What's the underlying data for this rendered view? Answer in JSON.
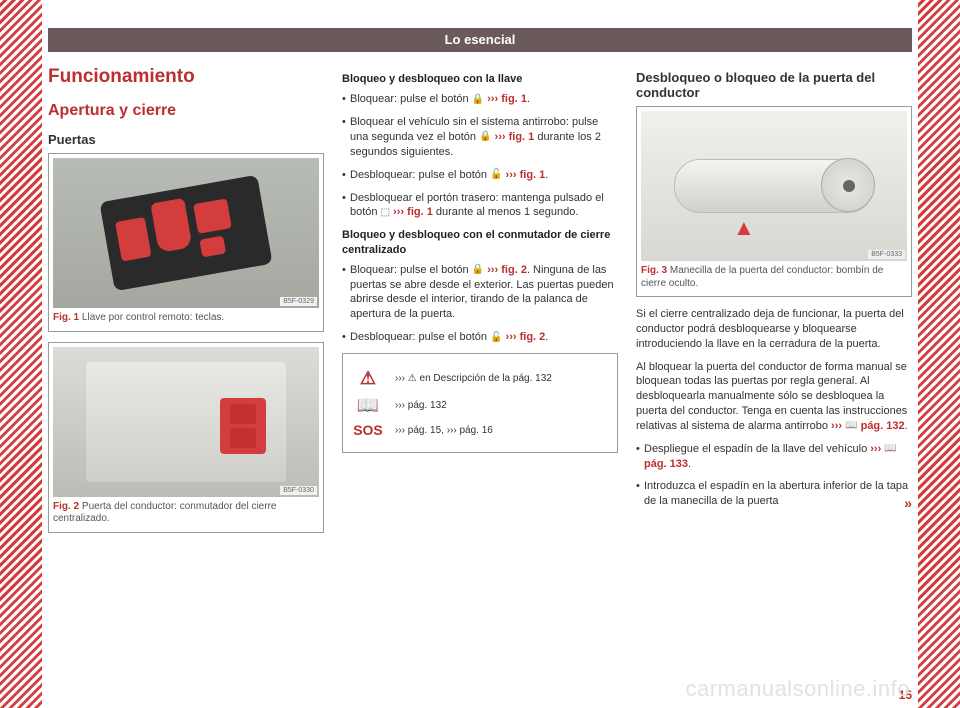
{
  "header": {
    "title": "Lo esencial"
  },
  "page_number": "15",
  "watermark": "carmanualsonline.info",
  "col1": {
    "h1": "Funcionamiento",
    "h2": "Apertura y cierre",
    "h3": "Puertas",
    "fig1": {
      "tag": "B5F-0329",
      "num": "Fig. 1",
      "cap": "Llave por control remoto: teclas."
    },
    "fig2": {
      "tag": "B5F-0330",
      "num": "Fig. 2",
      "cap": "Puerta del conductor: conmutador del cierre centralizado."
    }
  },
  "col2": {
    "t1": "Bloqueo y desbloqueo con la llave",
    "b1a": "Bloquear: pulse el botón ",
    "b1b": " ››› ",
    "b1c": "fig. 1",
    "b1d": ".",
    "b2a": "Bloquear el vehículo sin el sistema antirrobo: pulse una segunda vez el botón ",
    "b2b": " ››› ",
    "b2c": "fig. 1",
    "b2d": " durante los 2 segundos siguientes.",
    "b3a": "Desbloquear: pulse el botón ",
    "b3b": " ››› ",
    "b3c": "fig. 1",
    "b3d": ".",
    "b4a": "Desbloquear el portón trasero: mantenga pulsado el botón ",
    "b4b": " ››› ",
    "b4c": "fig. 1",
    "b4d": " durante al menos 1 segundo.",
    "t2": "Bloqueo y desbloqueo con el conmutador de cierre centralizado",
    "c1a": "Bloquear: pulse el botón ",
    "c1b": " ››› ",
    "c1c": "fig. 2",
    "c1d": ". Ninguna de las puertas se abre desde el exterior. Las puertas pueden abrirse desde el interior, tirando de la palanca de apertura de la puerta.",
    "c2a": "Desbloquear: pulse el botón ",
    "c2b": " ››› ",
    "c2c": "fig. 2",
    "c2d": ".",
    "ref1": "››› ⚠ en Descripción de la pág. 132",
    "ref2": "››› pág. 132",
    "ref3": "››› pág. 15, ››› pág. 16",
    "sos": "SOS"
  },
  "col3": {
    "h3": "Desbloqueo o bloqueo de la puerta del conductor",
    "fig3": {
      "tag": "B5F-0333",
      "num": "Fig. 3",
      "cap": "Manecilla de la puerta del conductor: bombín de cierre oculto."
    },
    "p1": "Si el cierre centralizado deja de funcionar, la puerta del conductor podrá desbloquearse y bloquearse introduciendo la llave en la cerradura de la puerta.",
    "p2a": "Al bloquear la puerta del conductor de forma manual se bloquean todas las puertas por regla general. Al desbloquearla manualmente sólo se desbloquea la puerta del conductor. Tenga en cuenta las instrucciones relativas al sistema de alarma antirrobo ",
    "p2b": "››› ",
    "p2c": "pág. 132",
    "p2d": ".",
    "b1a": "Despliegue el espadín de la llave del vehículo ",
    "b1b": "››› ",
    "b1c": "pág. 133",
    "b1d": ".",
    "b2": "Introduzca el espadín en la abertura inferior de la tapa de la manecilla de la puerta",
    "cont": "»"
  }
}
